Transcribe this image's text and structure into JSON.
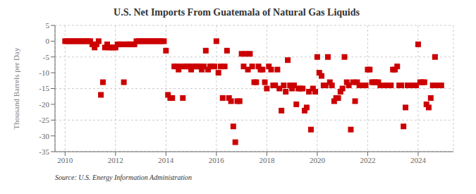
{
  "chart_data": {
    "type": "scatter",
    "title": "U.S. Net Imports From Guatemala of Natural Gas Liquids",
    "ylabel": "Thousand Barrels per Day",
    "source": "Source: U.S. Energy Information Administration",
    "color": "#cc0000",
    "marker": "square",
    "grid": true,
    "xlim": [
      2009.6,
      2025.4
    ],
    "xticks": [
      2010,
      2012,
      2014,
      2016,
      2018,
      2020,
      2022,
      2024
    ],
    "ylim": [
      -35,
      5
    ],
    "yticks": [
      5,
      0,
      -5,
      -10,
      -15,
      -20,
      -25,
      -30,
      -35
    ],
    "x": [
      2010.0,
      2010.08,
      2010.17,
      2010.25,
      2010.33,
      2010.42,
      2010.5,
      2010.58,
      2010.67,
      2010.75,
      2010.83,
      2010.92,
      2011.0,
      2011.08,
      2011.17,
      2011.25,
      2011.33,
      2011.42,
      2011.5,
      2011.58,
      2011.67,
      2011.75,
      2011.83,
      2011.92,
      2012.0,
      2012.08,
      2012.17,
      2012.25,
      2012.33,
      2012.42,
      2012.5,
      2012.58,
      2012.67,
      2012.75,
      2012.83,
      2012.92,
      2013.0,
      2013.08,
      2013.17,
      2013.25,
      2013.33,
      2013.42,
      2013.5,
      2013.58,
      2013.67,
      2013.75,
      2013.83,
      2013.92,
      2014.0,
      2014.08,
      2014.17,
      2014.25,
      2014.33,
      2014.42,
      2014.5,
      2014.58,
      2014.67,
      2014.75,
      2014.83,
      2014.92,
      2015.0,
      2015.08,
      2015.17,
      2015.25,
      2015.33,
      2015.42,
      2015.5,
      2015.58,
      2015.67,
      2015.75,
      2015.83,
      2015.92,
      2016.0,
      2016.08,
      2016.17,
      2016.25,
      2016.33,
      2016.42,
      2016.5,
      2016.58,
      2016.67,
      2016.75,
      2016.83,
      2016.92,
      2017.0,
      2017.08,
      2017.17,
      2017.25,
      2017.33,
      2017.42,
      2017.5,
      2017.58,
      2017.67,
      2017.75,
      2017.83,
      2017.92,
      2018.0,
      2018.08,
      2018.17,
      2018.25,
      2018.33,
      2018.42,
      2018.5,
      2018.58,
      2018.67,
      2018.75,
      2018.83,
      2018.92,
      2019.0,
      2019.08,
      2019.17,
      2019.25,
      2019.33,
      2019.42,
      2019.5,
      2019.58,
      2019.67,
      2019.75,
      2019.83,
      2019.92,
      2020.0,
      2020.08,
      2020.17,
      2020.25,
      2020.33,
      2020.42,
      2020.5,
      2020.58,
      2020.67,
      2020.75,
      2020.83,
      2020.92,
      2021.0,
      2021.08,
      2021.17,
      2021.25,
      2021.33,
      2021.42,
      2021.5,
      2021.58,
      2021.67,
      2021.75,
      2021.83,
      2021.92,
      2022.0,
      2022.08,
      2022.17,
      2022.25,
      2022.33,
      2022.42,
      2022.5,
      2022.58,
      2022.67,
      2022.75,
      2022.83,
      2022.92,
      2023.0,
      2023.08,
      2023.17,
      2023.25,
      2023.33,
      2023.42,
      2023.5,
      2023.58,
      2023.67,
      2023.75,
      2023.83,
      2023.92,
      2024.0,
      2024.08,
      2024.17,
      2024.25,
      2024.33,
      2024.42,
      2024.5,
      2024.58,
      2024.67,
      2024.75,
      2024.83,
      2024.92
    ],
    "values": [
      0,
      0,
      0,
      0,
      0,
      0,
      0,
      0,
      0,
      0,
      0,
      0,
      0,
      -1,
      -2,
      -1,
      0,
      -17,
      -13,
      -2,
      -1,
      -2,
      -2,
      -2,
      -2,
      -1,
      -1,
      -1,
      -13,
      -1,
      -1,
      -1,
      -1,
      -1,
      0,
      0,
      0,
      0,
      0,
      0,
      0,
      0,
      0,
      0,
      0,
      0,
      0,
      0,
      -3,
      -17,
      -18,
      -18,
      -8,
      -8,
      -9,
      -8,
      -18,
      -8,
      -8,
      -8,
      -9,
      -8,
      -8,
      -8,
      -8,
      -9,
      -8,
      -3,
      -9,
      -8,
      -8,
      -8,
      0,
      -10,
      -8,
      -18,
      -8,
      -3,
      -18,
      -19,
      -27,
      -32,
      -19,
      -19,
      -4,
      -8,
      -4,
      -9,
      -4,
      -8,
      -13,
      -13,
      -8,
      -9,
      -9,
      -13,
      -15,
      -8,
      -9,
      -14,
      -14,
      -9,
      -15,
      -22,
      -14,
      -16,
      -6,
      -14,
      -15,
      -14,
      -20,
      -15,
      -15,
      -15,
      -22,
      -21,
      -16,
      -28,
      -15,
      -16,
      -5,
      -10,
      -11,
      -14,
      -14,
      -5,
      -13,
      -14,
      -19,
      -18,
      -18,
      -16,
      -15,
      -5,
      -13,
      -14,
      -28,
      -13,
      -19,
      -13,
      -14,
      -14,
      -14,
      -14,
      -9,
      -9,
      -13,
      -13,
      -13,
      -13,
      -14,
      -14,
      -14,
      -14,
      -14,
      -14,
      -9,
      -9,
      -8,
      -14,
      -14,
      -27,
      -21,
      -14,
      -14,
      -14,
      -14,
      -14,
      -1,
      -13,
      -13,
      -13,
      -20,
      -21,
      -18,
      -14,
      -5,
      -14,
      -14,
      -14
    ]
  }
}
